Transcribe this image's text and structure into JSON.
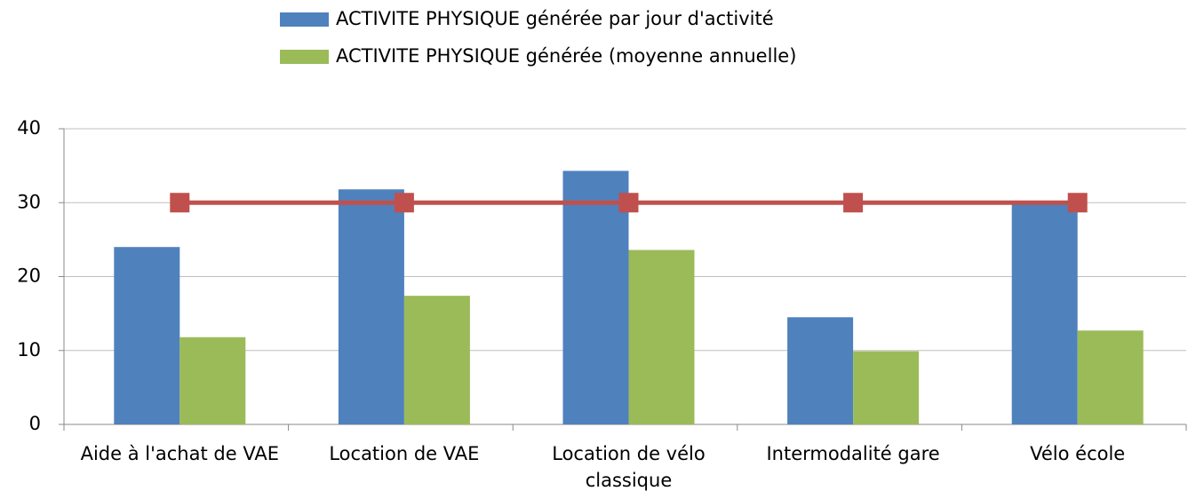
{
  "chart_data": {
    "type": "bar",
    "categories": [
      "Aide à l'achat de VAE",
      "Location de VAE",
      "Location de vélo classique",
      "Intermodalité gare",
      "Vélo école"
    ],
    "series": [
      {
        "name": "ACTIVITE PHYSIQUE générée par jour d'activité",
        "color": "#4f81bd",
        "values": [
          24,
          31.8,
          34.3,
          14.5,
          30
        ]
      },
      {
        "name": "ACTIVITE PHYSIQUE générée (moyenne annuelle)",
        "color": "#9bbb59",
        "values": [
          11.8,
          17.4,
          23.6,
          9.9,
          12.7
        ]
      },
      {
        "type": "line",
        "color": "#c0504d",
        "values": [
          30,
          30,
          30,
          30,
          30
        ]
      }
    ],
    "ylim": [
      0,
      40
    ],
    "yticks": [
      0,
      10,
      20,
      30,
      40
    ],
    "grid": true,
    "legend": "top"
  }
}
